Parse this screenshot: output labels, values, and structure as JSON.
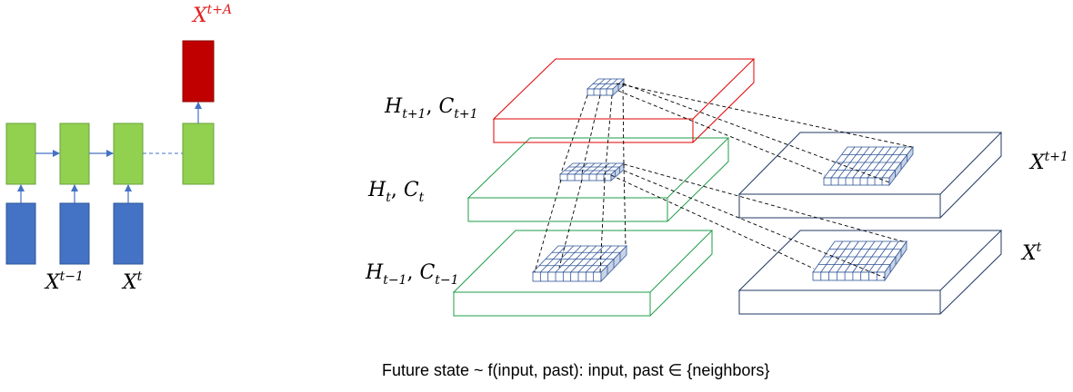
{
  "colors": {
    "green_fill": "#92d050",
    "green_stroke": "#6aa23a",
    "blue_fill": "#4472c4",
    "blue_stroke": "#2f5597",
    "red_fill": "#c00000",
    "red_text": "#e02020",
    "red_outline": "#e00000",
    "green_outline": "#1f9e4a",
    "navy_outline": "#203864",
    "grid_blue": "#2f5597",
    "arrow_blue": "#4472c4"
  },
  "rnn": {
    "output_label_base": "X",
    "output_label_sup": "t+A",
    "input_label_prev_base": "X",
    "input_label_prev_sup": "t−1",
    "input_label_curr_base": "X",
    "input_label_curr_sup": "t"
  },
  "layers": {
    "top_base_h": "H",
    "top_sub_h": "t+1",
    "top_base_c": "C",
    "top_sub_c": "t+1",
    "mid_base_h": "H",
    "mid_sub_h": "t",
    "mid_base_c": "C",
    "mid_sub_c": "t",
    "bot_base_h": "H",
    "bot_sub_h": "t−1",
    "bot_base_c": "C",
    "bot_sub_c": "t−1",
    "sep": ", "
  },
  "inputs": {
    "upper_base": "X",
    "upper_sup": "t+1",
    "lower_base": "X",
    "lower_sup": "t"
  },
  "caption": "Future state ~ f(input, past): input, past ∈ {neighbors}"
}
